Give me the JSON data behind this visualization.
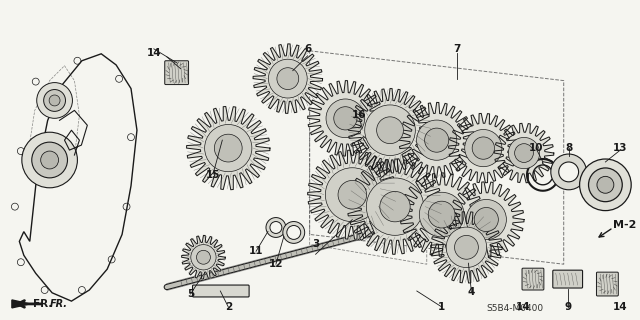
{
  "background_color": "#f5f5f0",
  "line_color": "#1a1a1a",
  "fill_light": "#e8e8e0",
  "fill_mid": "#d0d0c8",
  "fill_dark": "#b8b8b0",
  "figsize": [
    6.4,
    3.2
  ],
  "dpi": 100,
  "diagram_code": "S5B4-M0400",
  "page_code": "M-2",
  "fr_label": "FR."
}
